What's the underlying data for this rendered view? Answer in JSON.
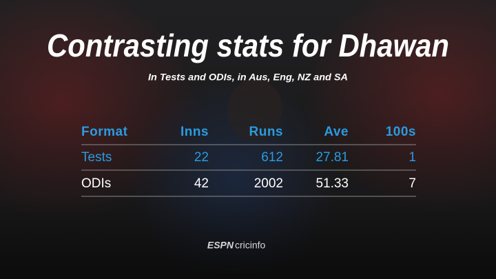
{
  "title": "Contrasting stats for Dhawan",
  "subtitle": "In Tests and ODIs, in Aus, Eng, NZ and SA",
  "table": {
    "header": [
      "Format",
      "Inns",
      "Runs",
      "Ave",
      "100s"
    ],
    "rows": [
      [
        "Tests",
        22,
        612,
        27.81,
        1
      ],
      [
        "ODIs",
        42,
        2002,
        51.33,
        7
      ]
    ]
  },
  "logo": {
    "brand": "ESPN",
    "name": "cricinfo"
  }
}
